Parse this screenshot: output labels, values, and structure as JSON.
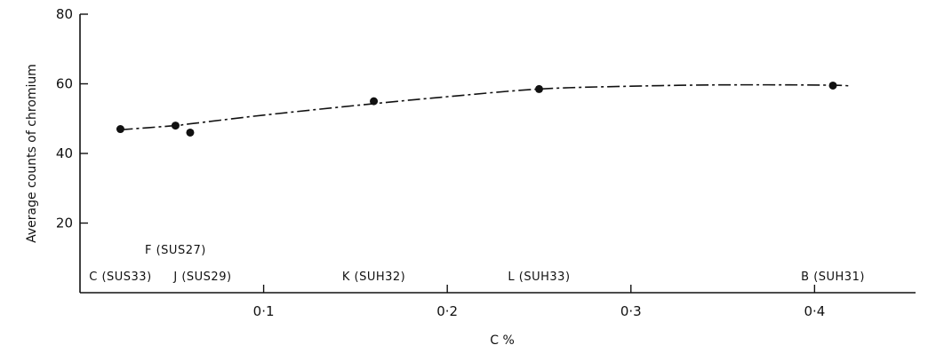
{
  "chart_data": {
    "type": "scatter",
    "xlabel": "C %",
    "ylabel": "Average counts of chromium",
    "xlim": [
      0,
      0.455
    ],
    "ylim": [
      0,
      80
    ],
    "x_ticks": [
      0.1,
      0.2,
      0.3,
      0.4
    ],
    "x_tick_labels": [
      "0·1",
      "0·2",
      "0·3",
      "0·4"
    ],
    "y_ticks": [
      20,
      40,
      60,
      80
    ],
    "y_tick_labels": [
      "20",
      "40",
      "60",
      "80"
    ],
    "grid": false,
    "series": [
      {
        "points": [
          {
            "label": "C (SUS33)",
            "x": 0.022,
            "y": 47
          },
          {
            "label": "F (SUS27)",
            "x": 0.052,
            "y": 48
          },
          {
            "label": "J (SUS29)",
            "x": 0.06,
            "y": 46
          },
          {
            "label": "K (SUH32)",
            "x": 0.16,
            "y": 55
          },
          {
            "label": "L (SUH33)",
            "x": 0.25,
            "y": 58.5
          },
          {
            "label": "B (SUH31)",
            "x": 0.41,
            "y": 59.5
          }
        ]
      }
    ],
    "fit_curve": {
      "style": "dash-dot",
      "x": [
        0.022,
        0.052,
        0.06,
        0.1,
        0.16,
        0.2,
        0.25,
        0.3,
        0.35,
        0.41,
        0.42
      ],
      "y": [
        46.8,
        48.0,
        48.5,
        51.0,
        54.3,
        56.3,
        58.5,
        59.3,
        59.7,
        59.6,
        59.2
      ]
    }
  }
}
